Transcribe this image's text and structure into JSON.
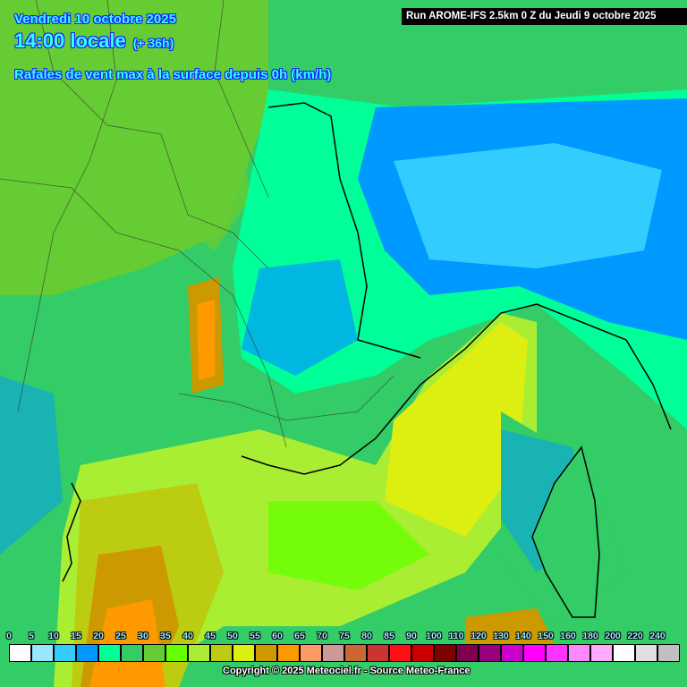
{
  "header": {
    "date": "Vendredi 10 octobre 2025",
    "time": "14:00 locale",
    "lead": "(+ 36h)",
    "parameter": "Rafales de vent max à la surface depuis 0h (km/h)",
    "run": "Run AROME-IFS 2.5km 0 Z du Jeudi 9 octobre 2025"
  },
  "legend": {
    "unit": "km/h",
    "labels": [
      "0",
      "5",
      "10",
      "15",
      "20",
      "25",
      "30",
      "35",
      "40",
      "45",
      "50",
      "55",
      "60",
      "65",
      "70",
      "75",
      "80",
      "85",
      "90",
      "100",
      "110",
      "120",
      "130",
      "140",
      "150",
      "160",
      "180",
      "200",
      "220",
      "240"
    ],
    "colors": [
      "#ffffff",
      "#99e6ff",
      "#33ccff",
      "#0099ff",
      "#00ff99",
      "#33cc66",
      "#66cc33",
      "#66ff00",
      "#aaee33",
      "#bbcc11",
      "#ddee11",
      "#cc9900",
      "#ff9900",
      "#ff9966",
      "#cc9999",
      "#cc6633",
      "#cc3333",
      "#ff1111",
      "#cc0000",
      "#800000",
      "#800050",
      "#990080",
      "#cc00cc",
      "#ff00ff",
      "#ff33ff",
      "#ff88ff",
      "#ffaaff",
      "#ffffff",
      "#e0e0e0",
      "#c0c0c0"
    ]
  },
  "footer": {
    "copyright": "Copyright © 2025 Meteociel.fr - Source Meteo-France"
  }
}
